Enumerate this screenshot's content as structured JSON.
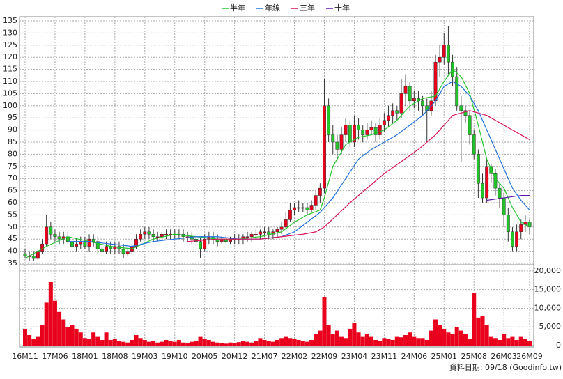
{
  "chart_data": {
    "type": "candlestick",
    "legend": [
      "半年",
      "年線",
      "三年",
      "十年"
    ],
    "source": "資料日期: 09/18 (Goodinfo.tw)",
    "categories": [
      "16M11",
      null,
      null,
      null,
      null,
      null,
      null,
      "17M06",
      null,
      null,
      null,
      null,
      null,
      null,
      "18M01",
      null,
      null,
      null,
      null,
      null,
      null,
      "18M08",
      null,
      null,
      null,
      null,
      null,
      null,
      "19M03",
      null,
      null,
      null,
      null,
      null,
      null,
      "19M10",
      null,
      null,
      null,
      null,
      null,
      null,
      "20M05",
      null,
      null,
      null,
      null,
      null,
      null,
      "20M12",
      null,
      null,
      null,
      null,
      null,
      null,
      "21M07",
      null,
      null,
      null,
      null,
      null,
      null,
      "22M02",
      null,
      null,
      null,
      null,
      null,
      null,
      "22M09",
      null,
      null,
      null,
      null,
      null,
      null,
      "23M04",
      null,
      null,
      null,
      null,
      null,
      null,
      "23M11",
      null,
      null,
      null,
      null,
      null,
      null,
      "24M06",
      null,
      null,
      null,
      null,
      null,
      null,
      "25M01",
      null,
      null,
      null,
      null,
      null,
      null,
      "25M08",
      null,
      null,
      null,
      null,
      null,
      null,
      "26M03",
      null,
      null,
      null,
      null,
      null,
      "26M09"
    ],
    "open": [
      39,
      38,
      38,
      37,
      40,
      43,
      50,
      47,
      46,
      45,
      46,
      44,
      42,
      43,
      44,
      42,
      45,
      44,
      41,
      40,
      42,
      41,
      42,
      41,
      39,
      40,
      42,
      45,
      47,
      48,
      47,
      46,
      46,
      47,
      47,
      47,
      47,
      47,
      46,
      46,
      45,
      44,
      41,
      45,
      46,
      45,
      44,
      45,
      44,
      45,
      45,
      45,
      46,
      46,
      47,
      47,
      48,
      48,
      47,
      48,
      49,
      50,
      53,
      57,
      58,
      58,
      58,
      57,
      59,
      63,
      66,
      100,
      88,
      85,
      82,
      88,
      92,
      85,
      92,
      90,
      88,
      90,
      91,
      88,
      92,
      94,
      96,
      98,
      97,
      105,
      108,
      102,
      103,
      102,
      100,
      98,
      102,
      118,
      120,
      125,
      118,
      112,
      100,
      98,
      96,
      88,
      80,
      68,
      62,
      75,
      72,
      66,
      62,
      55,
      48,
      42,
      48,
      51,
      52
    ],
    "high": [
      41,
      40,
      40,
      41,
      45,
      55,
      52,
      49,
      48,
      48,
      48,
      46,
      45,
      46,
      46,
      47,
      47,
      46,
      43,
      44,
      44,
      44,
      44,
      43,
      41,
      43,
      47,
      49,
      50,
      50,
      49,
      48,
      48,
      49,
      49,
      49,
      49,
      49,
      48,
      48,
      47,
      46,
      47,
      48,
      48,
      47,
      46,
      47,
      46,
      47,
      47,
      47,
      48,
      48,
      49,
      49,
      50,
      50,
      49,
      50,
      52,
      56,
      60,
      60,
      61,
      60,
      60,
      61,
      65,
      68,
      111,
      103,
      92,
      88,
      91,
      95,
      94,
      96,
      95,
      92,
      93,
      94,
      93,
      95,
      97,
      100,
      101,
      100,
      111,
      113,
      110,
      106,
      106,
      104,
      103,
      106,
      121,
      125,
      130,
      133,
      121,
      116,
      104,
      100,
      98,
      90,
      82,
      72,
      78,
      76,
      74,
      68,
      64,
      58,
      50,
      51,
      53,
      55,
      53
    ],
    "low": [
      37,
      36,
      36,
      36,
      39,
      42,
      45,
      44,
      43,
      43,
      43,
      41,
      40,
      41,
      41,
      40,
      42,
      39,
      38,
      39,
      39,
      39,
      39,
      37,
      38,
      39,
      41,
      44,
      45,
      45,
      44,
      44,
      45,
      45,
      45,
      45,
      45,
      44,
      44,
      43,
      42,
      37,
      40,
      43,
      43,
      42,
      43,
      43,
      43,
      43,
      43,
      43,
      44,
      44,
      45,
      45,
      46,
      45,
      45,
      46,
      47,
      49,
      52,
      55,
      56,
      56,
      55,
      56,
      57,
      60,
      64,
      85,
      80,
      78,
      80,
      85,
      83,
      83,
      86,
      85,
      86,
      88,
      85,
      86,
      89,
      91,
      93,
      94,
      95,
      100,
      98,
      99,
      98,
      96,
      85,
      96,
      100,
      112,
      117,
      113,
      108,
      98,
      77,
      93,
      84,
      78,
      62,
      60,
      60,
      68,
      63,
      58,
      50,
      44,
      40,
      40,
      45,
      48,
      47
    ],
    "close": [
      38,
      38,
      37,
      40,
      43,
      50,
      47,
      46,
      45,
      46,
      44,
      42,
      43,
      44,
      42,
      45,
      44,
      41,
      40,
      42,
      41,
      42,
      41,
      39,
      40,
      42,
      45,
      47,
      48,
      47,
      46,
      46,
      47,
      47,
      47,
      47,
      47,
      46,
      46,
      45,
      44,
      41,
      45,
      46,
      45,
      44,
      45,
      44,
      45,
      45,
      45,
      46,
      46,
      47,
      47,
      48,
      48,
      47,
      48,
      49,
      50,
      53,
      57,
      58,
      58,
      58,
      57,
      59,
      63,
      66,
      100,
      88,
      85,
      82,
      88,
      92,
      85,
      92,
      90,
      88,
      90,
      91,
      88,
      92,
      94,
      96,
      98,
      97,
      105,
      108,
      102,
      103,
      102,
      100,
      98,
      102,
      118,
      120,
      125,
      118,
      112,
      100,
      98,
      96,
      88,
      80,
      68,
      62,
      75,
      72,
      66,
      62,
      55,
      48,
      42,
      48,
      51,
      52,
      50
    ],
    "volume": [
      4500,
      2800,
      1800,
      2500,
      5500,
      11500,
      17000,
      12000,
      9000,
      7000,
      5000,
      5500,
      4500,
      3500,
      2000,
      1800,
      3500,
      2500,
      1500,
      3500,
      1500,
      1800,
      1200,
      1000,
      800,
      1500,
      2800,
      2000,
      1500,
      1000,
      1200,
      800,
      1000,
      1500,
      1200,
      1000,
      1500,
      800,
      700,
      1000,
      1200,
      2500,
      1800,
      1500,
      1000,
      800,
      600,
      500,
      800,
      700,
      900,
      1200,
      1000,
      800,
      1200,
      2000,
      1500,
      1200,
      1000,
      1500,
      2000,
      2500,
      2000,
      1800,
      1500,
      1200,
      1000,
      1500,
      3000,
      4000,
      13000,
      5500,
      3000,
      4000,
      2500,
      2000,
      4500,
      6000,
      3500,
      2500,
      3000,
      2500,
      1500,
      1200,
      2000,
      1800,
      1500,
      2500,
      2200,
      2800,
      3500,
      2500,
      2000,
      2000,
      1500,
      4000,
      7000,
      5500,
      4500,
      3500,
      3000,
      5000,
      4000,
      3000,
      1800,
      14000,
      7500,
      8000,
      5500,
      2500,
      2000,
      1500,
      3000,
      2000,
      2500,
      1500,
      2500,
      1800,
      1200
    ],
    "up_color": "#e8001c",
    "down_color": "#22c42a",
    "volume_color": "#e8001c",
    "ylim": [
      35,
      135
    ],
    "yticks": [
      35,
      40,
      45,
      50,
      55,
      60,
      65,
      70,
      75,
      80,
      85,
      90,
      95,
      100,
      105,
      110,
      115,
      120,
      125,
      130,
      135
    ],
    "volume_ylim": [
      0,
      21100
    ],
    "volume_yticks": [
      0,
      {
        "value": 5000,
        "label": "5,000"
      },
      {
        "value": 10000,
        "label": "10,000"
      },
      {
        "value": 15000,
        "label": "15,000"
      },
      {
        "value": 20000,
        "label": "20,000"
      }
    ],
    "grid": true,
    "series": [
      {
        "name": "半年",
        "color": "#22c42a",
        "x": [
          0,
          5,
          10,
          15,
          20,
          25,
          30,
          35,
          40,
          45,
          50,
          55,
          60,
          63,
          66,
          69,
          70,
          72,
          75,
          78,
          81,
          84,
          87,
          90,
          93,
          96,
          98,
          100,
          102,
          104,
          106,
          108,
          110,
          112,
          114,
          116,
          118
        ],
        "values": [
          37,
          42,
          46,
          44,
          42,
          41,
          45,
          47,
          46,
          45,
          45,
          46,
          48,
          52,
          55,
          57,
          62,
          75,
          84,
          87,
          88,
          90,
          94,
          100,
          103,
          104,
          110,
          115,
          112,
          105,
          92,
          78,
          70,
          66,
          58,
          52,
          50
        ]
      },
      {
        "name": "年線",
        "color": "#1f6fe0",
        "x": [
          10,
          15,
          20,
          25,
          30,
          35,
          40,
          45,
          50,
          55,
          60,
          63,
          66,
          69,
          72,
          75,
          78,
          81,
          84,
          87,
          90,
          93,
          96,
          98,
          100,
          102,
          104,
          106,
          108,
          110,
          112,
          114,
          116,
          118
        ],
        "values": [
          44,
          44,
          43,
          42,
          44,
          45,
          46,
          46,
          45,
          45,
          46,
          48,
          52,
          56,
          62,
          70,
          78,
          82,
          85,
          88,
          92,
          96,
          102,
          108,
          110,
          108,
          104,
          98,
          90,
          82,
          74,
          66,
          61,
          57
        ]
      },
      {
        "name": "三年",
        "color": "#d8125a",
        "x": [
          38,
          45,
          50,
          55,
          60,
          65,
          68,
          70,
          73,
          76,
          80,
          84,
          88,
          92,
          96,
          100,
          104,
          108,
          112,
          116,
          118
        ],
        "values": [
          44,
          45,
          45,
          45,
          46,
          47,
          48,
          50,
          55,
          60,
          66,
          72,
          77,
          82,
          88,
          96,
          98,
          96,
          92,
          88,
          86
        ]
      },
      {
        "name": "十年",
        "color": "#5a1aa8",
        "x": [
          108,
          112,
          116,
          118
        ],
        "values": [
          61,
          62,
          63,
          63
        ]
      }
    ]
  }
}
